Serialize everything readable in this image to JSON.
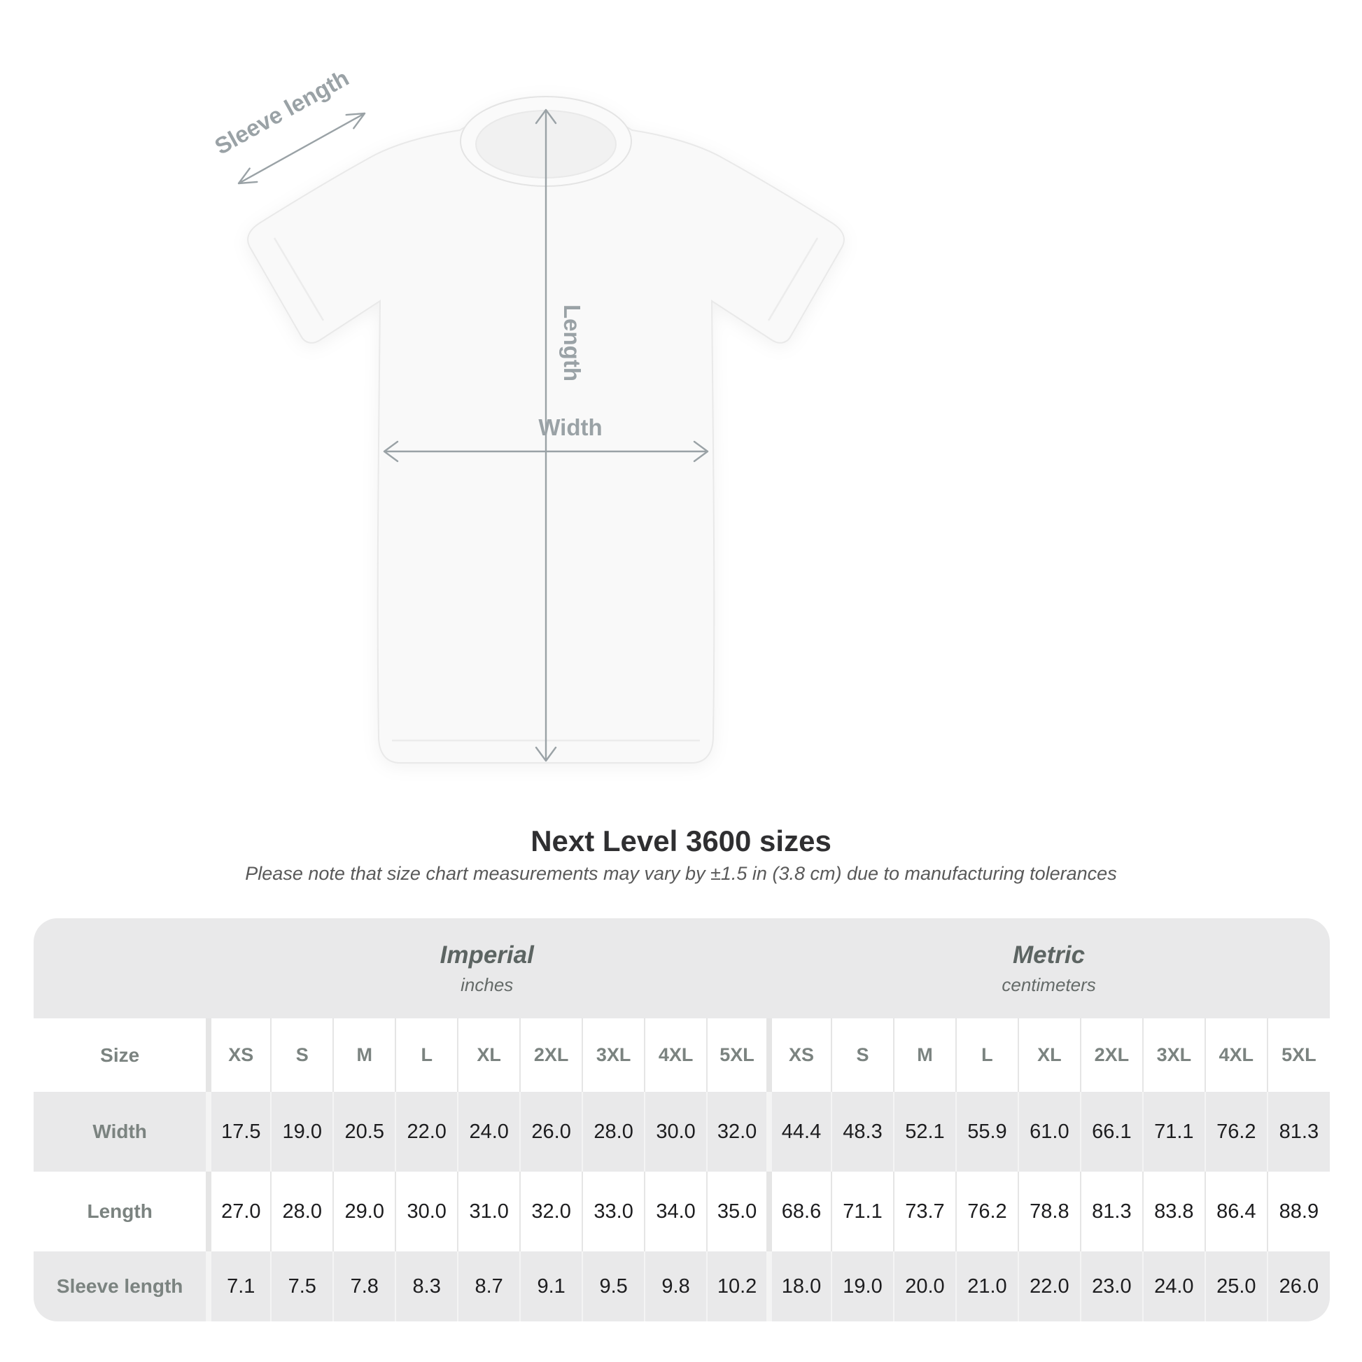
{
  "shirt_diagram": {
    "sleeve_length_label": "Sleeve length",
    "length_label": "Length",
    "width_label": "Width"
  },
  "heading": {
    "title": "Next Level 3600 sizes",
    "subtitle": "Please note that size chart measurements may vary by ±1.5 in (3.8 cm) due to manufacturing tolerances"
  },
  "size_chart": {
    "size_label": "Size",
    "unit_groups": [
      {
        "name": "Imperial",
        "unit": "inches"
      },
      {
        "name": "Metric",
        "unit": "centimeters"
      }
    ],
    "sizes": [
      "XS",
      "S",
      "M",
      "L",
      "XL",
      "2XL",
      "3XL",
      "4XL",
      "5XL"
    ],
    "rows": [
      {
        "label": "Width",
        "imperial": [
          "17.5",
          "19.0",
          "20.5",
          "22.0",
          "24.0",
          "26.0",
          "28.0",
          "30.0",
          "32.0"
        ],
        "metric": [
          "44.4",
          "48.3",
          "52.1",
          "55.9",
          "61.0",
          "66.1",
          "71.1",
          "76.2",
          "81.3"
        ]
      },
      {
        "label": "Length",
        "imperial": [
          "27.0",
          "28.0",
          "29.0",
          "30.0",
          "31.0",
          "32.0",
          "33.0",
          "34.0",
          "35.0"
        ],
        "metric": [
          "68.6",
          "71.1",
          "73.7",
          "76.2",
          "78.8",
          "81.3",
          "83.8",
          "86.4",
          "88.9"
        ]
      },
      {
        "label": "Sleeve length",
        "imperial": [
          "7.1",
          "7.5",
          "7.8",
          "8.3",
          "8.7",
          "9.1",
          "9.5",
          "9.8",
          "10.2"
        ],
        "metric": [
          "18.0",
          "19.0",
          "20.0",
          "21.0",
          "22.0",
          "23.0",
          "24.0",
          "25.0",
          "26.0"
        ]
      }
    ]
  },
  "colors": {
    "annotation_gray": "#9aa2a6",
    "stripe_gray": "#e9e9ea",
    "band_gray": "#e9e9ea",
    "value_text": "#1d1d1f",
    "label_gray": "#7b8380",
    "shirt_fill": "#f9f9f9"
  }
}
